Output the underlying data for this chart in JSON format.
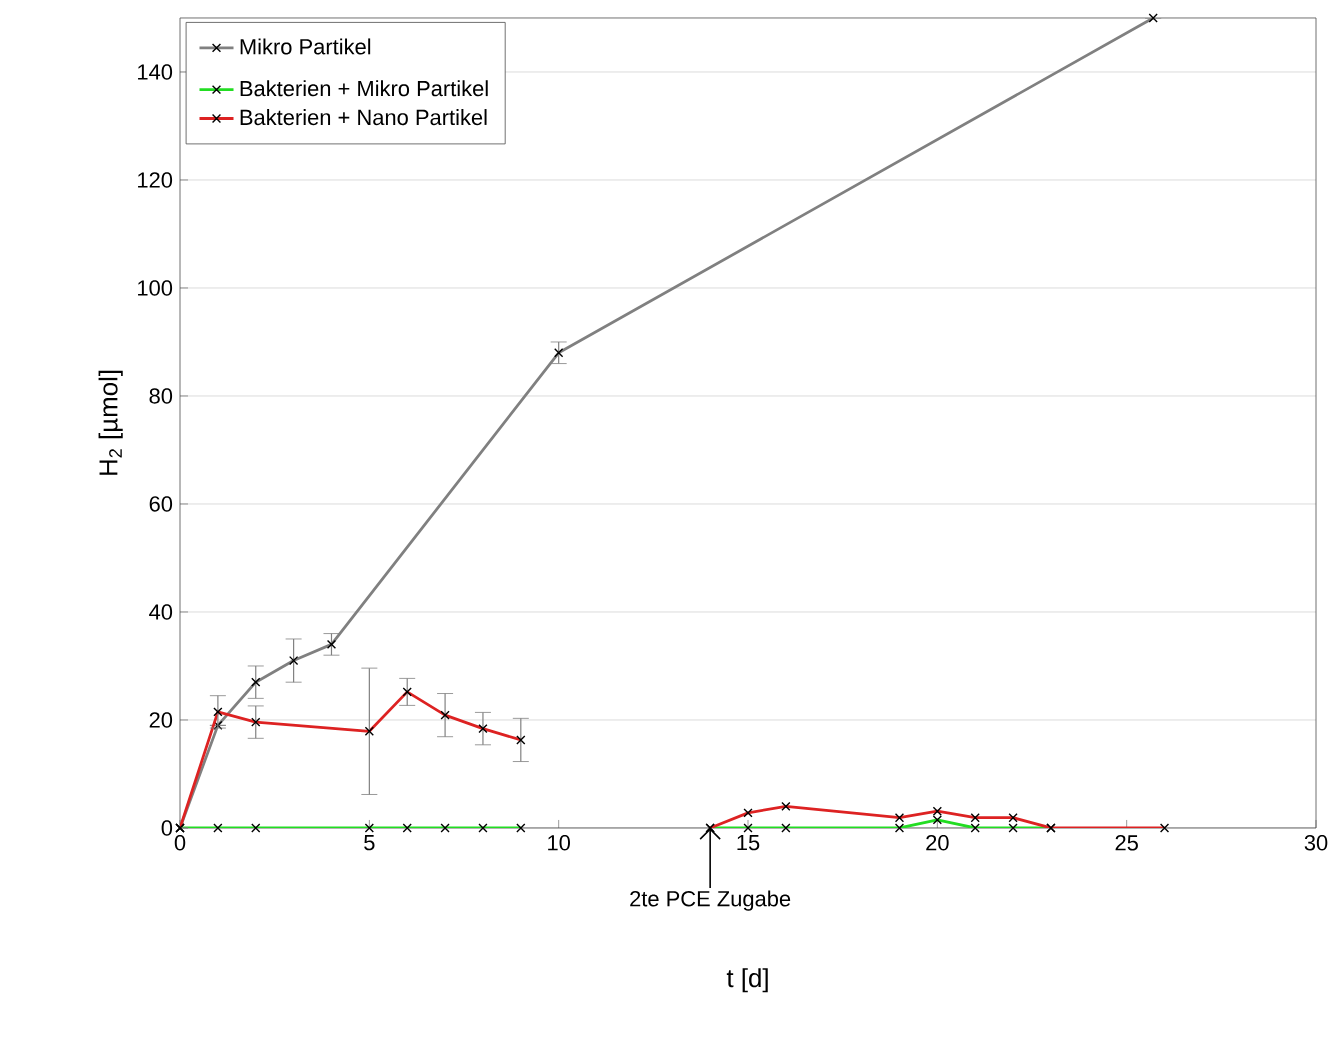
{
  "chart_data": {
    "type": "line",
    "xlabel": "t [d]",
    "ylabel": "H$_{2}$ [µmol]",
    "xlim": [
      0,
      30
    ],
    "ylim": [
      0,
      150
    ],
    "xticks": [
      0,
      5,
      10,
      15,
      20,
      25,
      30
    ],
    "yticks": [
      0,
      20,
      40,
      60,
      80,
      100,
      120,
      140
    ],
    "grid": "y",
    "legend": "top left",
    "marker": "cross",
    "line_style": "solid",
    "series": [
      {
        "name": "Mikro Partikel",
        "color": "#808080",
        "x": [
          0,
          1,
          2,
          3,
          4,
          10,
          25.7
        ],
        "values": [
          0,
          19,
          27,
          31,
          34,
          88,
          150
        ],
        "errors": [
          null,
          null,
          3,
          4,
          2,
          2,
          null
        ]
      },
      {
        "name": "Bakterien + Mikro Partikel",
        "color": "#22dd22",
        "x": [
          0,
          1,
          2,
          5,
          6,
          7,
          8,
          9
        ],
        "values": [
          0,
          0,
          0,
          0,
          0,
          0,
          0,
          0
        ]
      },
      {
        "color": "#22dd22",
        "x": [
          14,
          15,
          16,
          19,
          20,
          21,
          22,
          23
        ],
        "values": [
          0,
          0,
          0,
          0,
          1.5,
          0,
          0,
          0
        ]
      },
      {
        "name": "Bakterien + Nano Partikel",
        "color": "#dd2222",
        "x": [
          0,
          1,
          2,
          5,
          6,
          7,
          8,
          9
        ],
        "values": [
          0,
          21.5,
          19.6,
          17.9,
          25.2,
          20.9,
          18.4,
          16.3
        ],
        "errors": [
          null,
          3,
          3,
          11.7,
          2.5,
          4,
          3,
          4
        ]
      },
      {
        "color": "#dd2222",
        "x": [
          14,
          15,
          16,
          19,
          20,
          21,
          22,
          23,
          26
        ],
        "values": [
          0,
          2.8,
          4,
          1.9,
          3.1,
          1.9,
          1.9,
          0,
          0
        ]
      }
    ],
    "annotations": [
      {
        "text": "2te PCE Zugabe",
        "x": 14,
        "y": 0
      }
    ]
  }
}
